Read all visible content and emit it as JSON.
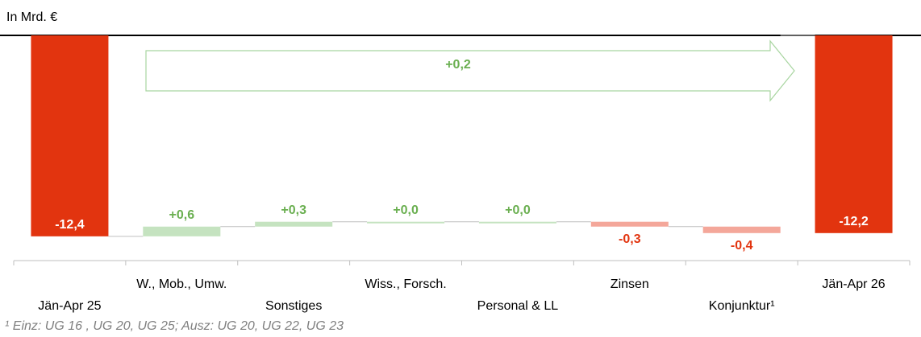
{
  "chart_data": {
    "type": "waterfall",
    "unit_label": "In Mrd. €",
    "categories": [
      "Jän-Apr 25",
      "W., Mob., Umw.",
      "Sonstiges",
      "Wiss., Forsch.",
      "Personal & LL",
      "Zinsen",
      "Konjunktur¹",
      "Jän-Apr 26"
    ],
    "values": [
      -12.4,
      0.6,
      0.3,
      0.0,
      0.0,
      -0.3,
      -0.4,
      -12.2
    ],
    "value_labels": [
      "-12,4",
      "+0,6",
      "+0,3",
      "+0,0",
      "+0,0",
      "-0,3",
      "-0,4",
      "-12,2"
    ],
    "totals": [
      true,
      false,
      false,
      false,
      false,
      false,
      false,
      true
    ],
    "colors": {
      "total": "#e2340f",
      "increase": "#c5e3c0",
      "decrease": "#f4a79a"
    },
    "label_colors": {
      "increase": "#6aaf50",
      "decrease": "#e2340f",
      "total": "#ffffff"
    },
    "ylim": [
      -13.5,
      0
    ],
    "annotation": {
      "text": "+0,2",
      "value": 0.2
    },
    "footnote": "¹ Einz: UG 16 , UG 20, UG 25; Ausz: UG 20, UG 22, UG 23"
  }
}
